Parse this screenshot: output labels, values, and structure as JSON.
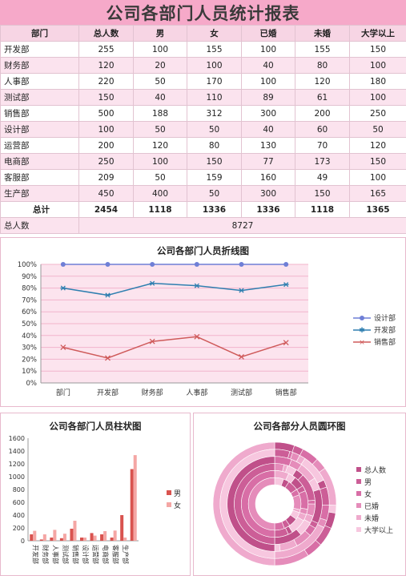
{
  "report": {
    "title": "公司各部门人员统计报表",
    "headers": [
      "部门",
      "总人数",
      "男",
      "女",
      "已婚",
      "未婚",
      "大学以上"
    ],
    "rows": [
      [
        "开发部",
        "255",
        "100",
        "155",
        "100",
        "155",
        "150"
      ],
      [
        "财务部",
        "120",
        "20",
        "100",
        "40",
        "80",
        "100"
      ],
      [
        "人事部",
        "220",
        "50",
        "170",
        "100",
        "120",
        "180"
      ],
      [
        "测试部",
        "150",
        "40",
        "110",
        "89",
        "61",
        "100"
      ],
      [
        "销售部",
        "500",
        "188",
        "312",
        "300",
        "200",
        "250"
      ],
      [
        "设计部",
        "100",
        "50",
        "50",
        "40",
        "60",
        "50"
      ],
      [
        "运营部",
        "200",
        "120",
        "80",
        "130",
        "70",
        "120"
      ],
      [
        "电商部",
        "250",
        "100",
        "150",
        "77",
        "173",
        "150"
      ],
      [
        "客服部",
        "209",
        "50",
        "159",
        "160",
        "49",
        "100"
      ],
      [
        "生产部",
        "450",
        "400",
        "50",
        "300",
        "150",
        "165"
      ]
    ],
    "total_row": [
      "总计",
      "2454",
      "1118",
      "1336",
      "1336",
      "1118",
      "1365"
    ],
    "grand_label": "总人数",
    "grand_value": "8727"
  },
  "chart_data": [
    {
      "type": "line",
      "title": "公司各部门人员折线图",
      "categories": [
        "部门",
        "开发部",
        "财务部",
        "人事部",
        "测试部",
        "销售部"
      ],
      "ylim": [
        0,
        1
      ],
      "yticks": [
        "0%",
        "10%",
        "20%",
        "30%",
        "40%",
        "50%",
        "60%",
        "70%",
        "80%",
        "90%",
        "100%"
      ],
      "series": [
        {
          "name": "设计部",
          "color": "#6f7fd6",
          "marker": "circle",
          "values": [
            1.0,
            1.0,
            1.0,
            1.0,
            1.0,
            1.0
          ]
        },
        {
          "name": "开发部",
          "color": "#2f7fb0",
          "marker": "star",
          "values": [
            0.8,
            0.74,
            0.84,
            0.82,
            0.78,
            0.83
          ]
        },
        {
          "name": "销售部",
          "color": "#cf5a5a",
          "marker": "x",
          "values": [
            0.3,
            0.21,
            0.35,
            0.39,
            0.22,
            0.34
          ]
        }
      ],
      "legend": "right",
      "grid": true
    },
    {
      "type": "bar",
      "title": "公司各部门人员柱状图",
      "categories": [
        "开发部",
        "财务部",
        "人事部",
        "测试部",
        "销售部",
        "设计部",
        "运营部",
        "电商部",
        "客服部",
        "生产部"
      ],
      "ylim": [
        0,
        1600
      ],
      "yticks": [
        "0",
        "200",
        "400",
        "600",
        "800",
        "1000",
        "1200",
        "1400",
        "1600"
      ],
      "series": [
        {
          "name": "男",
          "color": "#d9534f",
          "values": [
            100,
            20,
            50,
            40,
            188,
            50,
            120,
            100,
            50,
            400
          ]
        },
        {
          "name": "女",
          "color": "#f4a6a4",
          "values": [
            155,
            100,
            170,
            110,
            312,
            50,
            80,
            150,
            159,
            50
          ]
        }
      ],
      "extra_bars_note": "last category column shows cumulative totals",
      "totals_bars": {
        "男": 1118,
        "女": 1336
      },
      "legend": "right",
      "grid": false
    },
    {
      "type": "pie",
      "title": "公司各部分人员圆环图",
      "rings": [
        "总人数",
        "男",
        "女",
        "已婚",
        "未婚",
        "大学以上"
      ],
      "ring_colors": [
        "#c0508a",
        "#cc5e97",
        "#d86ea6",
        "#e58cba",
        "#efaacd",
        "#f7c7df"
      ],
      "slices": [
        {
          "category": "开发部",
          "values": [
            255,
            100,
            155,
            100,
            155,
            150
          ]
        },
        {
          "category": "财务部",
          "values": [
            120,
            20,
            100,
            40,
            80,
            100
          ]
        },
        {
          "category": "人事部",
          "values": [
            220,
            50,
            170,
            100,
            120,
            180
          ]
        },
        {
          "category": "测试部",
          "values": [
            150,
            40,
            110,
            89,
            61,
            100
          ]
        },
        {
          "category": "销售部",
          "values": [
            500,
            188,
            312,
            300,
            200,
            250
          ]
        },
        {
          "category": "设计部",
          "values": [
            100,
            50,
            50,
            40,
            60,
            50
          ]
        },
        {
          "category": "运营部",
          "values": [
            200,
            120,
            80,
            130,
            70,
            120
          ]
        },
        {
          "category": "电商部",
          "values": [
            250,
            100,
            150,
            77,
            173,
            150
          ]
        },
        {
          "category": "客服部",
          "values": [
            209,
            50,
            159,
            160,
            49,
            100
          ]
        },
        {
          "category": "生产部",
          "values": [
            450,
            400,
            50,
            300,
            150,
            165
          ]
        },
        {
          "category": "总计",
          "values": [
            2454,
            1118,
            1336,
            1336,
            1118,
            1365
          ]
        }
      ],
      "legend": "right"
    }
  ]
}
